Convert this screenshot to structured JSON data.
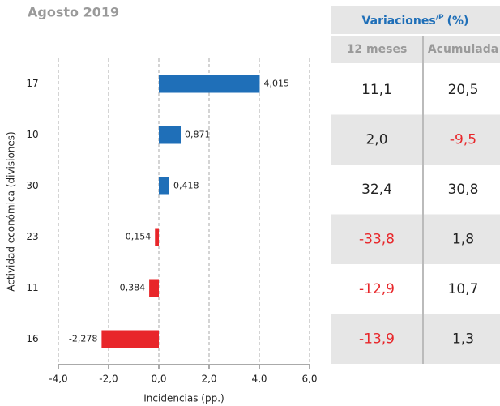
{
  "chart_data": {
    "type": "hbar",
    "title": "Agosto 2019",
    "categories": [
      "17",
      "10",
      "30",
      "23",
      "11",
      "16"
    ],
    "values": [
      4.015,
      0.871,
      0.418,
      -0.154,
      -0.384,
      -2.278
    ],
    "value_labels": [
      "4,015",
      "0,871",
      "0,418",
      "-0,154",
      "-0,384",
      "-2,278"
    ],
    "positive_color": "#1f6fb8",
    "negative_color": "#e8262a",
    "xlim": [
      -4,
      6
    ],
    "xticks": [
      {
        "value": -4,
        "label": "-4,0"
      },
      {
        "value": -2,
        "label": "-2,0"
      },
      {
        "value": 0,
        "label": "0,0"
      },
      {
        "value": 2,
        "label": "2,0"
      },
      {
        "value": 4,
        "label": "4,0"
      },
      {
        "value": 6,
        "label": "6,0"
      }
    ],
    "xlabel": "Incidencias (pp.)",
    "ylabel": "Actividad económica (divisiones)",
    "grid": true
  },
  "table": {
    "title": "Variaciones",
    "title_sup": "/P",
    "title_unit": "(%)",
    "columns": [
      "12 meses",
      "Acumulada"
    ],
    "rows": [
      [
        "11,1",
        "20,5"
      ],
      [
        "2,0",
        "-9,5"
      ],
      [
        "32,4",
        "30,8"
      ],
      [
        "-33,8",
        "1,8"
      ],
      [
        "-12,9",
        "10,7"
      ],
      [
        "-13,9",
        "1,3"
      ]
    ]
  }
}
